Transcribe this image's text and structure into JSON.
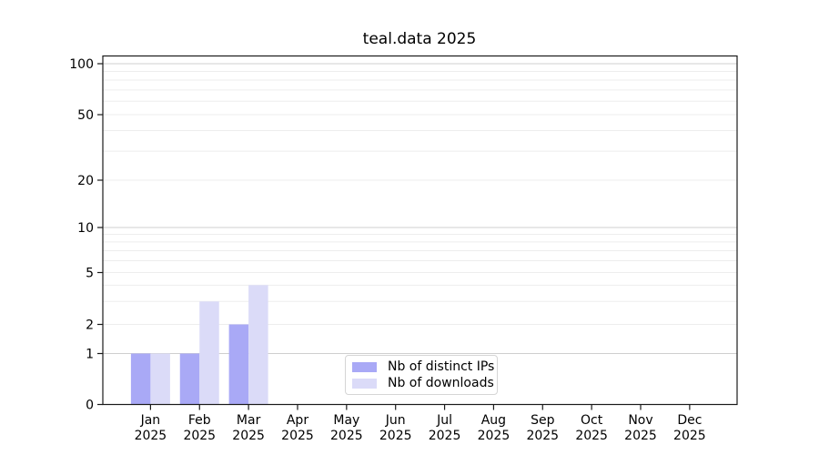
{
  "title": "teal.data 2025",
  "chart_data": {
    "type": "bar",
    "title": "teal.data 2025",
    "categories": [
      "Jan",
      "Feb",
      "Mar",
      "Apr",
      "May",
      "Jun",
      "Jul",
      "Aug",
      "Sep",
      "Oct",
      "Nov",
      "Dec"
    ],
    "x_tick_second_line": "2025",
    "series": [
      {
        "name": "Nb of distinct IPs",
        "color": "#a9a9f6",
        "values": [
          1,
          1,
          2,
          0,
          0,
          0,
          0,
          0,
          0,
          0,
          0,
          0
        ]
      },
      {
        "name": "Nb of downloads",
        "color": "#dbdbf8",
        "values": [
          1,
          3,
          4,
          0,
          0,
          0,
          0,
          0,
          0,
          0,
          0,
          0
        ]
      }
    ],
    "y_axis": {
      "scale": "symlog",
      "tick_values": [
        0,
        1,
        2,
        5,
        10,
        20,
        50,
        100
      ],
      "tick_labels": [
        "0",
        "1",
        "2",
        "5",
        "10",
        "20",
        "50",
        "100"
      ],
      "ylim": [
        0,
        110
      ]
    },
    "x_axis": {
      "label": "",
      "tick_rotation": 0
    },
    "grid": {
      "major_values": [
        1,
        10,
        100
      ],
      "minor_values": [
        2,
        3,
        4,
        5,
        6,
        7,
        8,
        9,
        20,
        30,
        40,
        50,
        60,
        70,
        80,
        90
      ],
      "major_color": "#cfcfcf",
      "minor_color": "#ededed"
    },
    "legend": {
      "position": "lower center",
      "border_color": "#d5d5d5"
    },
    "colors": {
      "spine": "#1a1a1a",
      "text": "#000000",
      "background": "#ffffff"
    }
  }
}
